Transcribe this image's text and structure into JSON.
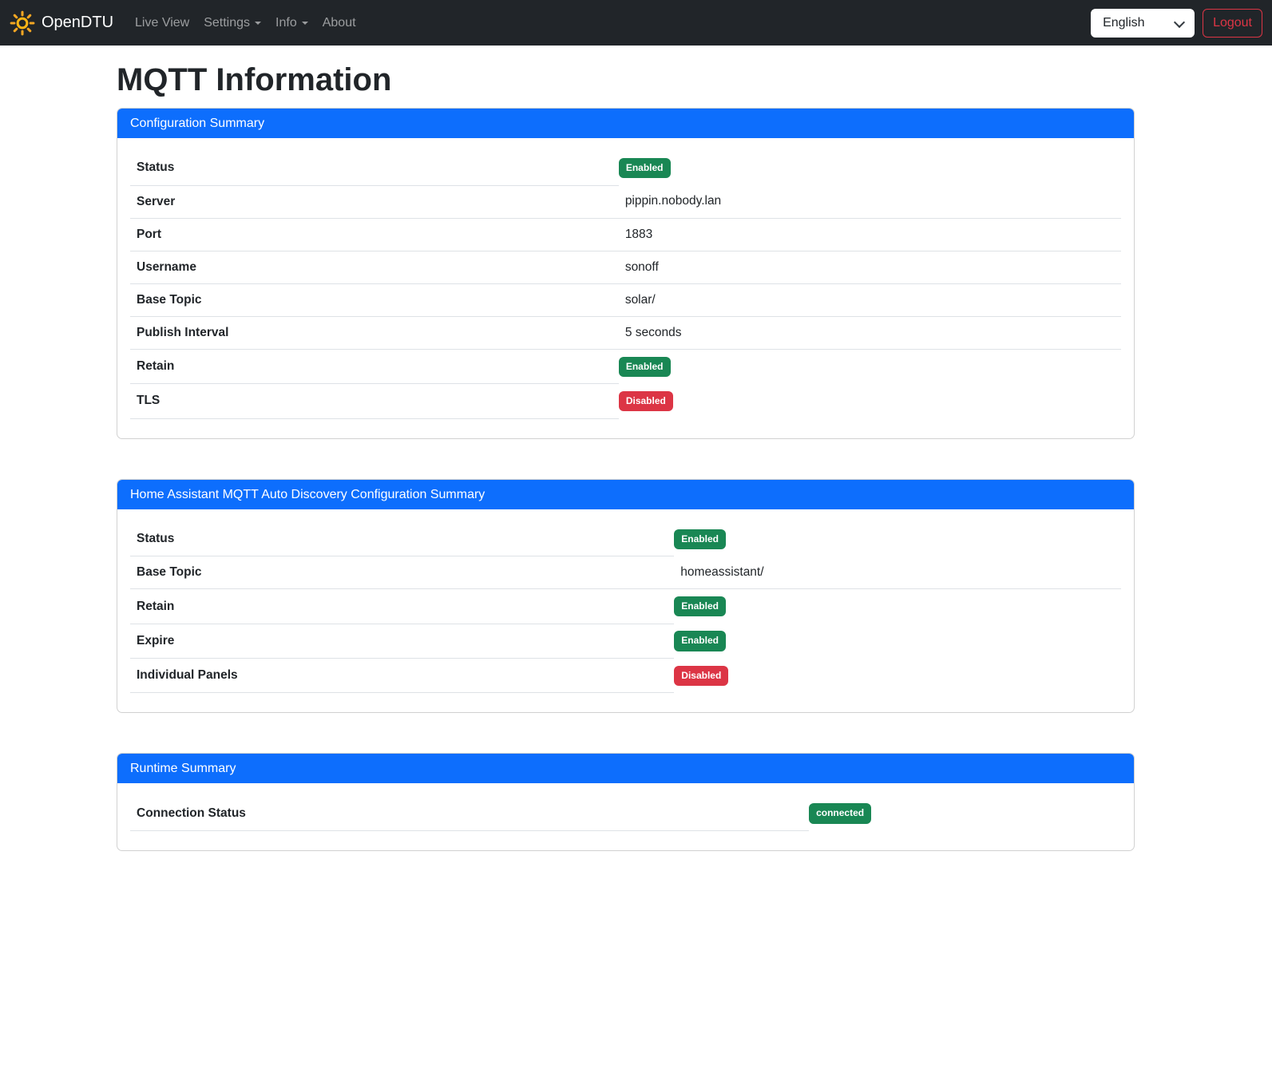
{
  "navbar": {
    "brand": "OpenDTU",
    "items": [
      {
        "label": "Live View",
        "has_dropdown": false
      },
      {
        "label": "Settings",
        "has_dropdown": true
      },
      {
        "label": "Info",
        "has_dropdown": true
      },
      {
        "label": "About",
        "has_dropdown": false
      }
    ],
    "language": {
      "selected": "English"
    },
    "logout_label": "Logout"
  },
  "page": {
    "title": "MQTT Information"
  },
  "cards": [
    {
      "title": "Configuration Summary",
      "rows": [
        {
          "label": "Status",
          "type": "badge",
          "value": "Enabled",
          "variant": "success"
        },
        {
          "label": "Server",
          "type": "text",
          "value": "pippin.nobody.lan"
        },
        {
          "label": "Port",
          "type": "text",
          "value": "1883"
        },
        {
          "label": "Username",
          "type": "text",
          "value": "sonoff"
        },
        {
          "label": "Base Topic",
          "type": "text",
          "value": "solar/"
        },
        {
          "label": "Publish Interval",
          "type": "text",
          "value": "5 seconds"
        },
        {
          "label": "Retain",
          "type": "badge",
          "value": "Enabled",
          "variant": "success"
        },
        {
          "label": "TLS",
          "type": "badge",
          "value": "Disabled",
          "variant": "danger"
        }
      ]
    },
    {
      "title": "Home Assistant MQTT Auto Discovery Configuration Summary",
      "rows": [
        {
          "label": "Status",
          "type": "badge",
          "value": "Enabled",
          "variant": "success"
        },
        {
          "label": "Base Topic",
          "type": "text",
          "value": "homeassistant/"
        },
        {
          "label": "Retain",
          "type": "badge",
          "value": "Enabled",
          "variant": "success"
        },
        {
          "label": "Expire",
          "type": "badge",
          "value": "Enabled",
          "variant": "success"
        },
        {
          "label": "Individual Panels",
          "type": "badge",
          "value": "Disabled",
          "variant": "danger"
        }
      ]
    },
    {
      "title": "Runtime Summary",
      "rows": [
        {
          "label": "Connection Status",
          "type": "badge",
          "value": "connected",
          "variant": "success"
        }
      ]
    }
  ],
  "icons": {
    "brand": "sun-icon",
    "nav_dropdown": "caret-down-icon",
    "language_select": "chevron-down-icon"
  },
  "colors": {
    "primary_header": "#0d6efd",
    "badge_success": "#198754",
    "badge_danger": "#dc3545",
    "navbar_bg": "#212529",
    "table_border": "#dee2e6",
    "logout_red": "#dc3545",
    "sun_gold": "#fdb515"
  }
}
